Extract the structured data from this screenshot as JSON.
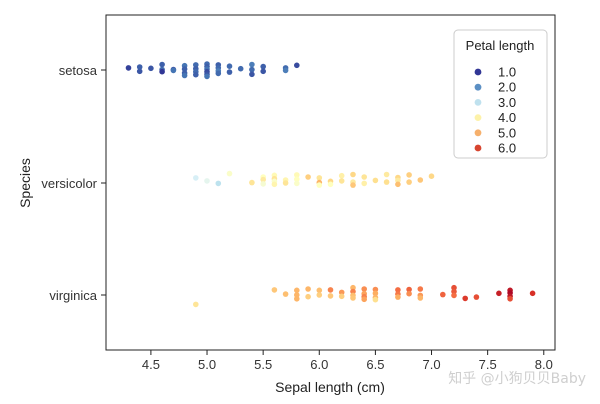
{
  "chart_data": {
    "type": "scatter",
    "title": "",
    "xlabel": "Sepal length (cm)",
    "ylabel": "Species",
    "xlim": [
      4.1,
      8.1
    ],
    "x_ticks": [
      4.5,
      5.0,
      5.5,
      6.0,
      6.5,
      7.0,
      7.5,
      8.0
    ],
    "x_tick_labels": [
      "4.5",
      "5.0",
      "5.5",
      "6.0",
      "6.5",
      "7.0",
      "7.5",
      "8.0"
    ],
    "categories": [
      "setosa",
      "versicolor",
      "virginica"
    ],
    "grid": false,
    "legend": {
      "title": "Petal length",
      "placement": "top-right",
      "entries": [
        {
          "label": "1.0",
          "color": "#313695"
        },
        {
          "label": "2.0",
          "color": "#5b8fc4"
        },
        {
          "label": "3.0",
          "color": "#bfe1ee"
        },
        {
          "label": "4.0",
          "color": "#fdf2a9"
        },
        {
          "label": "5.0",
          "color": "#f6b06c"
        },
        {
          "label": "6.0",
          "color": "#d7452f"
        }
      ]
    },
    "color_scale": {
      "min": 1.0,
      "max": 7.0,
      "stops": [
        "#313695",
        "#4575b4",
        "#74add1",
        "#abd9e9",
        "#e0f3f8",
        "#ffffbf",
        "#fee090",
        "#fdae61",
        "#f46d43",
        "#d73027",
        "#a50026"
      ]
    },
    "points": [
      {
        "species": "setosa",
        "x": 4.3,
        "jitter": 0.1,
        "petal": 1.1
      },
      {
        "species": "setosa",
        "x": 4.4,
        "jitter": -0.06,
        "petal": 1.3
      },
      {
        "species": "setosa",
        "x": 4.4,
        "jitter": 0.14,
        "petal": 1.4
      },
      {
        "species": "setosa",
        "x": 4.5,
        "jitter": 0.08,
        "petal": 1.3
      },
      {
        "species": "setosa",
        "x": 4.6,
        "jitter": 0.26,
        "petal": 1.4
      },
      {
        "species": "setosa",
        "x": 4.6,
        "jitter": 0.02,
        "petal": 1.5
      },
      {
        "species": "setosa",
        "x": 4.6,
        "jitter": -0.08,
        "petal": 1.0
      },
      {
        "species": "setosa",
        "x": 4.7,
        "jitter": 0.02,
        "petal": 1.3
      },
      {
        "species": "setosa",
        "x": 4.7,
        "jitter": -0.02,
        "petal": 1.6
      },
      {
        "species": "setosa",
        "x": 4.8,
        "jitter": 0.2,
        "petal": 1.6
      },
      {
        "species": "setosa",
        "x": 4.8,
        "jitter": 0.04,
        "petal": 1.4
      },
      {
        "species": "setosa",
        "x": 4.8,
        "jitter": -0.14,
        "petal": 1.4
      },
      {
        "species": "setosa",
        "x": 4.8,
        "jitter": -0.26,
        "petal": 1.6
      },
      {
        "species": "setosa",
        "x": 4.9,
        "jitter": 0.24,
        "petal": 1.5
      },
      {
        "species": "setosa",
        "x": 4.9,
        "jitter": 0.06,
        "petal": 1.4
      },
      {
        "species": "setosa",
        "x": 4.9,
        "jitter": -0.08,
        "petal": 1.5
      },
      {
        "species": "setosa",
        "x": 4.9,
        "jitter": -0.22,
        "petal": 1.4
      },
      {
        "species": "setosa",
        "x": 5.0,
        "jitter": 0.28,
        "petal": 1.5
      },
      {
        "species": "setosa",
        "x": 5.0,
        "jitter": 0.16,
        "petal": 1.4
      },
      {
        "species": "setosa",
        "x": 5.0,
        "jitter": 0.04,
        "petal": 1.6
      },
      {
        "species": "setosa",
        "x": 5.0,
        "jitter": -0.08,
        "petal": 1.2
      },
      {
        "species": "setosa",
        "x": 5.0,
        "jitter": -0.2,
        "petal": 1.3
      },
      {
        "species": "setosa",
        "x": 5.0,
        "jitter": -0.3,
        "petal": 1.6
      },
      {
        "species": "setosa",
        "x": 5.1,
        "jitter": 0.24,
        "petal": 1.4
      },
      {
        "species": "setosa",
        "x": 5.1,
        "jitter": 0.1,
        "petal": 1.5
      },
      {
        "species": "setosa",
        "x": 5.1,
        "jitter": -0.04,
        "petal": 1.7
      },
      {
        "species": "setosa",
        "x": 5.1,
        "jitter": -0.16,
        "petal": 1.5
      },
      {
        "species": "setosa",
        "x": 5.2,
        "jitter": 0.18,
        "petal": 1.5
      },
      {
        "species": "setosa",
        "x": 5.2,
        "jitter": -0.1,
        "petal": 1.4
      },
      {
        "species": "setosa",
        "x": 5.3,
        "jitter": 0.06,
        "petal": 1.5
      },
      {
        "species": "setosa",
        "x": 5.4,
        "jitter": 0.26,
        "petal": 1.7
      },
      {
        "species": "setosa",
        "x": 5.4,
        "jitter": 0.02,
        "petal": 1.5
      },
      {
        "species": "setosa",
        "x": 5.4,
        "jitter": -0.2,
        "petal": 1.3
      },
      {
        "species": "setosa",
        "x": 5.5,
        "jitter": 0.16,
        "petal": 1.4
      },
      {
        "species": "setosa",
        "x": 5.5,
        "jitter": -0.06,
        "petal": 1.3
      },
      {
        "species": "setosa",
        "x": 5.7,
        "jitter": 0.1,
        "petal": 1.5
      },
      {
        "species": "setosa",
        "x": 5.7,
        "jitter": -0.02,
        "petal": 1.7
      },
      {
        "species": "setosa",
        "x": 5.8,
        "jitter": 0.22,
        "petal": 1.2
      },
      {
        "species": "versicolor",
        "x": 4.9,
        "jitter": 0.24,
        "petal": 3.3
      },
      {
        "species": "versicolor",
        "x": 5.0,
        "jitter": 0.1,
        "petal": 3.5
      },
      {
        "species": "versicolor",
        "x": 5.1,
        "jitter": -0.02,
        "petal": 3.0
      },
      {
        "species": "versicolor",
        "x": 5.2,
        "jitter": 0.44,
        "petal": 3.9
      },
      {
        "species": "versicolor",
        "x": 5.4,
        "jitter": 0.02,
        "petal": 4.5
      },
      {
        "species": "versicolor",
        "x": 5.5,
        "jitter": 0.28,
        "petal": 4.0
      },
      {
        "species": "versicolor",
        "x": 5.5,
        "jitter": 0.16,
        "petal": 4.4
      },
      {
        "species": "versicolor",
        "x": 5.5,
        "jitter": -0.04,
        "petal": 3.8
      },
      {
        "species": "versicolor",
        "x": 5.6,
        "jitter": 0.36,
        "petal": 4.1
      },
      {
        "species": "versicolor",
        "x": 5.6,
        "jitter": 0.2,
        "petal": 4.5
      },
      {
        "species": "versicolor",
        "x": 5.6,
        "jitter": 0.08,
        "petal": 3.9
      },
      {
        "species": "versicolor",
        "x": 5.6,
        "jitter": -0.06,
        "petal": 4.2
      },
      {
        "species": "versicolor",
        "x": 5.7,
        "jitter": 0.14,
        "petal": 4.2
      },
      {
        "species": "versicolor",
        "x": 5.7,
        "jitter": 0.0,
        "petal": 4.5
      },
      {
        "species": "versicolor",
        "x": 5.8,
        "jitter": 0.38,
        "petal": 4.1
      },
      {
        "species": "versicolor",
        "x": 5.8,
        "jitter": 0.18,
        "petal": 4.0
      },
      {
        "species": "versicolor",
        "x": 5.8,
        "jitter": -0.02,
        "petal": 3.9
      },
      {
        "species": "versicolor",
        "x": 5.9,
        "jitter": 0.28,
        "petal": 4.8
      },
      {
        "species": "versicolor",
        "x": 6.0,
        "jitter": 0.24,
        "petal": 4.5
      },
      {
        "species": "versicolor",
        "x": 6.0,
        "jitter": 0.02,
        "petal": 5.1
      },
      {
        "species": "versicolor",
        "x": 6.0,
        "jitter": -0.1,
        "petal": 4.0
      },
      {
        "species": "versicolor",
        "x": 6.1,
        "jitter": 0.08,
        "petal": 4.7
      },
      {
        "species": "versicolor",
        "x": 6.1,
        "jitter": -0.06,
        "petal": 4.0
      },
      {
        "species": "versicolor",
        "x": 6.2,
        "jitter": 0.34,
        "petal": 4.3
      },
      {
        "species": "versicolor",
        "x": 6.2,
        "jitter": 0.1,
        "petal": 4.5
      },
      {
        "species": "versicolor",
        "x": 6.3,
        "jitter": 0.4,
        "petal": 4.7
      },
      {
        "species": "versicolor",
        "x": 6.3,
        "jitter": 0.04,
        "petal": 4.4
      },
      {
        "species": "versicolor",
        "x": 6.3,
        "jitter": -0.1,
        "petal": 4.9
      },
      {
        "species": "versicolor",
        "x": 6.4,
        "jitter": 0.28,
        "petal": 4.5
      },
      {
        "species": "versicolor",
        "x": 6.4,
        "jitter": -0.02,
        "petal": 4.3
      },
      {
        "species": "versicolor",
        "x": 6.5,
        "jitter": 0.12,
        "petal": 4.6
      },
      {
        "species": "versicolor",
        "x": 6.6,
        "jitter": 0.4,
        "petal": 4.4
      },
      {
        "species": "versicolor",
        "x": 6.6,
        "jitter": 0.04,
        "petal": 4.6
      },
      {
        "species": "versicolor",
        "x": 6.7,
        "jitter": 0.26,
        "petal": 4.7
      },
      {
        "species": "versicolor",
        "x": 6.7,
        "jitter": 0.12,
        "petal": 4.4
      },
      {
        "species": "versicolor",
        "x": 6.7,
        "jitter": -0.06,
        "petal": 5.0
      },
      {
        "species": "versicolor",
        "x": 6.8,
        "jitter": 0.38,
        "petal": 4.8
      },
      {
        "species": "versicolor",
        "x": 6.8,
        "jitter": 0.04,
        "petal": 4.8
      },
      {
        "species": "versicolor",
        "x": 6.9,
        "jitter": 0.14,
        "petal": 4.9
      },
      {
        "species": "versicolor",
        "x": 7.0,
        "jitter": 0.32,
        "petal": 4.7
      },
      {
        "species": "virginica",
        "x": 4.9,
        "jitter": -0.44,
        "petal": 4.5
      },
      {
        "species": "virginica",
        "x": 5.6,
        "jitter": 0.24,
        "petal": 4.9
      },
      {
        "species": "virginica",
        "x": 5.7,
        "jitter": 0.04,
        "petal": 5.0
      },
      {
        "species": "virginica",
        "x": 5.8,
        "jitter": 0.22,
        "petal": 5.1
      },
      {
        "species": "virginica",
        "x": 5.8,
        "jitter": -0.18,
        "petal": 5.1
      },
      {
        "species": "virginica",
        "x": 5.8,
        "jitter": 0.0,
        "petal": 5.1
      },
      {
        "species": "virginica",
        "x": 5.9,
        "jitter": 0.28,
        "petal": 5.1
      },
      {
        "species": "virginica",
        "x": 5.9,
        "jitter": -0.08,
        "petal": 4.8
      },
      {
        "species": "virginica",
        "x": 6.0,
        "jitter": 0.22,
        "petal": 5.0
      },
      {
        "species": "virginica",
        "x": 6.0,
        "jitter": 0.0,
        "petal": 4.8
      },
      {
        "species": "virginica",
        "x": 6.1,
        "jitter": 0.24,
        "petal": 5.6
      },
      {
        "species": "virginica",
        "x": 6.1,
        "jitter": -0.04,
        "petal": 4.9
      },
      {
        "species": "virginica",
        "x": 6.2,
        "jitter": 0.12,
        "petal": 5.4
      },
      {
        "species": "virginica",
        "x": 6.2,
        "jitter": -0.06,
        "petal": 4.8
      },
      {
        "species": "virginica",
        "x": 6.3,
        "jitter": 0.34,
        "petal": 5.1
      },
      {
        "species": "virginica",
        "x": 6.3,
        "jitter": 0.16,
        "petal": 5.6
      },
      {
        "species": "virginica",
        "x": 6.3,
        "jitter": -0.02,
        "petal": 5.0
      },
      {
        "species": "virginica",
        "x": 6.3,
        "jitter": -0.14,
        "petal": 4.9
      },
      {
        "species": "virginica",
        "x": 6.4,
        "jitter": 0.28,
        "petal": 5.5
      },
      {
        "species": "virginica",
        "x": 6.4,
        "jitter": 0.06,
        "petal": 5.3
      },
      {
        "species": "virginica",
        "x": 6.4,
        "jitter": -0.08,
        "petal": 5.6
      },
      {
        "species": "virginica",
        "x": 6.4,
        "jitter": -0.2,
        "petal": 5.3
      },
      {
        "species": "virginica",
        "x": 6.5,
        "jitter": 0.26,
        "petal": 5.5
      },
      {
        "species": "virginica",
        "x": 6.5,
        "jitter": 0.08,
        "petal": 5.2
      },
      {
        "species": "virginica",
        "x": 6.5,
        "jitter": -0.12,
        "petal": 5.1
      },
      {
        "species": "virginica",
        "x": 6.5,
        "jitter": -0.22,
        "petal": 4.6
      },
      {
        "species": "virginica",
        "x": 6.7,
        "jitter": 0.24,
        "petal": 5.8
      },
      {
        "species": "virginica",
        "x": 6.7,
        "jitter": 0.04,
        "petal": 5.7
      },
      {
        "species": "virginica",
        "x": 6.7,
        "jitter": -0.1,
        "petal": 5.2
      },
      {
        "species": "virginica",
        "x": 6.8,
        "jitter": 0.26,
        "petal": 5.9
      },
      {
        "species": "virginica",
        "x": 6.8,
        "jitter": 0.06,
        "petal": 5.5
      },
      {
        "species": "virginica",
        "x": 6.9,
        "jitter": 0.28,
        "petal": 5.7
      },
      {
        "species": "virginica",
        "x": 6.9,
        "jitter": -0.02,
        "petal": 5.4
      },
      {
        "species": "virginica",
        "x": 6.9,
        "jitter": -0.14,
        "petal": 5.1
      },
      {
        "species": "virginica",
        "x": 7.1,
        "jitter": 0.02,
        "petal": 5.9
      },
      {
        "species": "virginica",
        "x": 7.2,
        "jitter": 0.34,
        "petal": 6.1
      },
      {
        "species": "virginica",
        "x": 7.2,
        "jitter": 0.16,
        "petal": 6.0
      },
      {
        "species": "virginica",
        "x": 7.2,
        "jitter": -0.02,
        "petal": 5.8
      },
      {
        "species": "virginica",
        "x": 7.3,
        "jitter": -0.16,
        "petal": 6.3
      },
      {
        "species": "virginica",
        "x": 7.4,
        "jitter": -0.1,
        "petal": 6.1
      },
      {
        "species": "virginica",
        "x": 7.6,
        "jitter": 0.08,
        "petal": 6.6
      },
      {
        "species": "virginica",
        "x": 7.7,
        "jitter": 0.22,
        "petal": 6.7
      },
      {
        "species": "virginica",
        "x": 7.7,
        "jitter": 0.1,
        "petal": 6.9
      },
      {
        "species": "virginica",
        "x": 7.7,
        "jitter": -0.06,
        "petal": 6.7
      },
      {
        "species": "virginica",
        "x": 7.7,
        "jitter": -0.18,
        "petal": 6.1
      },
      {
        "species": "virginica",
        "x": 7.9,
        "jitter": 0.08,
        "petal": 6.4
      }
    ]
  },
  "watermark": "知乎 @小狗贝贝Baby"
}
